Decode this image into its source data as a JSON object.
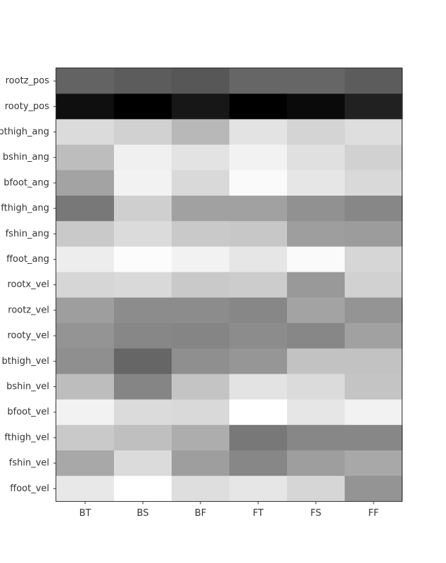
{
  "chart_data": {
    "type": "heatmap",
    "colormap": "grayscale",
    "x_categories": [
      "BT",
      "BS",
      "BF",
      "FT",
      "FS",
      "FF"
    ],
    "y_categories": [
      "rootz_pos",
      "rooty_pos",
      "bthigh_ang",
      "bshin_ang",
      "bfoot_ang",
      "fthigh_ang",
      "fshin_ang",
      "ffoot_ang",
      "rootx_vel",
      "rootz_vel",
      "rooty_vel",
      "bthigh_vel",
      "bshin_vel",
      "bfoot_vel",
      "fthigh_vel",
      "fshin_vel",
      "ffoot_vel"
    ],
    "values": [
      [
        0.39,
        0.36,
        0.34,
        0.4,
        0.4,
        0.36
      ],
      [
        0.06,
        0.0,
        0.09,
        0.0,
        0.04,
        0.13
      ],
      [
        0.86,
        0.82,
        0.72,
        0.89,
        0.83,
        0.87
      ],
      [
        0.74,
        0.94,
        0.89,
        0.95,
        0.88,
        0.82
      ],
      [
        0.64,
        0.95,
        0.85,
        0.98,
        0.9,
        0.85
      ],
      [
        0.47,
        0.81,
        0.63,
        0.63,
        0.57,
        0.53
      ],
      [
        0.79,
        0.86,
        0.79,
        0.78,
        0.62,
        0.61
      ],
      [
        0.93,
        0.99,
        0.95,
        0.9,
        0.98,
        0.84
      ],
      [
        0.84,
        0.85,
        0.79,
        0.8,
        0.6,
        0.82
      ],
      [
        0.62,
        0.55,
        0.55,
        0.53,
        0.64,
        0.58
      ],
      [
        0.58,
        0.53,
        0.52,
        0.55,
        0.53,
        0.63
      ],
      [
        0.56,
        0.4,
        0.56,
        0.59,
        0.76,
        0.76
      ],
      [
        0.74,
        0.52,
        0.77,
        0.89,
        0.86,
        0.77
      ],
      [
        0.95,
        0.86,
        0.85,
        1.0,
        0.9,
        0.95
      ],
      [
        0.79,
        0.75,
        0.68,
        0.47,
        0.53,
        0.53
      ],
      [
        0.66,
        0.86,
        0.62,
        0.53,
        0.62,
        0.66
      ],
      [
        0.91,
        1.0,
        0.87,
        0.9,
        0.84,
        0.58
      ]
    ]
  }
}
